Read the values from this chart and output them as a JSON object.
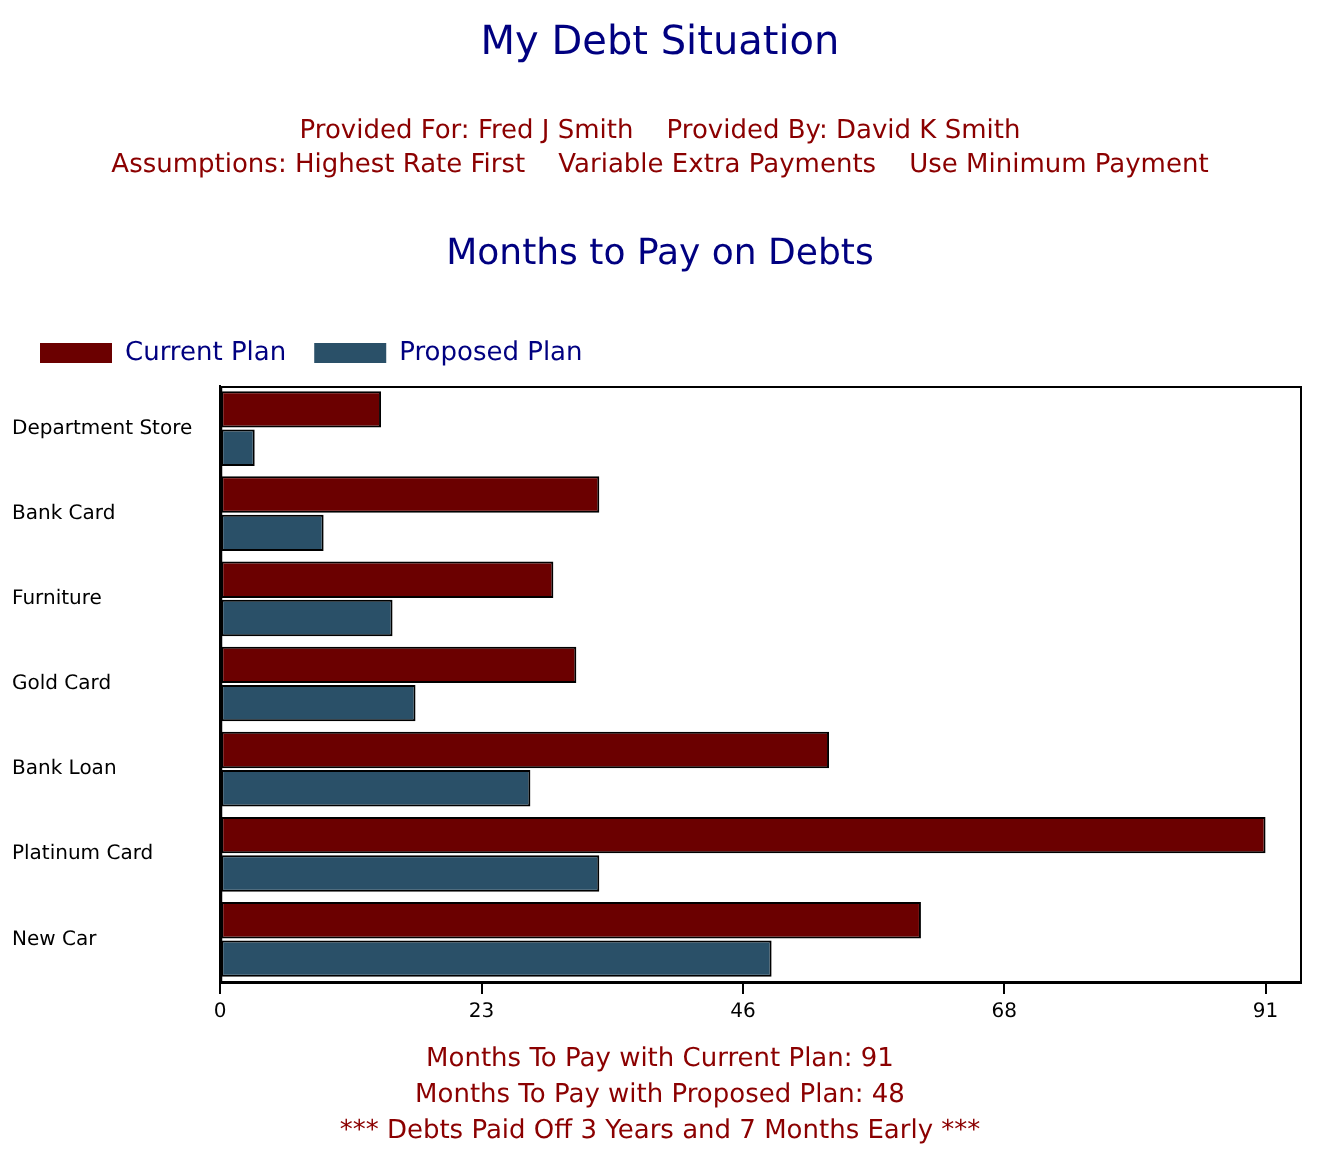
{
  "chart_data": {
    "type": "bar",
    "orientation": "horizontal",
    "title": "My Debt Situation",
    "subtitle": "Provided For: Fred J Smith    Provided By: David K Smith\nAssumptions: Highest Rate First    Variable Extra Payments    Use Minimum Payment",
    "annotations": [
      "Months to Pay on Debts",
      "Months To Pay with Current Plan: 91",
      "Months To Pay with Proposed Plan: 48",
      "*** Debts Paid Off 3 Years and 7 Months Early ***"
    ],
    "categories": [
      "Department Store",
      "Bank Card",
      "Furniture",
      "Gold Card",
      "Bank Loan",
      "Platinum Card",
      "New Car"
    ],
    "series": [
      {
        "name": "Current Plan",
        "color": "#6b0000",
        "values": [
          14,
          33,
          29,
          31,
          53,
          91,
          61
        ]
      },
      {
        "name": "Proposed Plan",
        "color": "#2a5068",
        "values": [
          3,
          9,
          15,
          17,
          27,
          33,
          48
        ]
      }
    ],
    "xlim": [
      0,
      94
    ],
    "xticks": [
      0,
      {
        "value": 22.75,
        "label": "23"
      },
      {
        "value": 45.5,
        "label": "46"
      },
      {
        "value": 68.25,
        "label": "68"
      },
      91
    ],
    "grid": false,
    "legend": "top left"
  }
}
